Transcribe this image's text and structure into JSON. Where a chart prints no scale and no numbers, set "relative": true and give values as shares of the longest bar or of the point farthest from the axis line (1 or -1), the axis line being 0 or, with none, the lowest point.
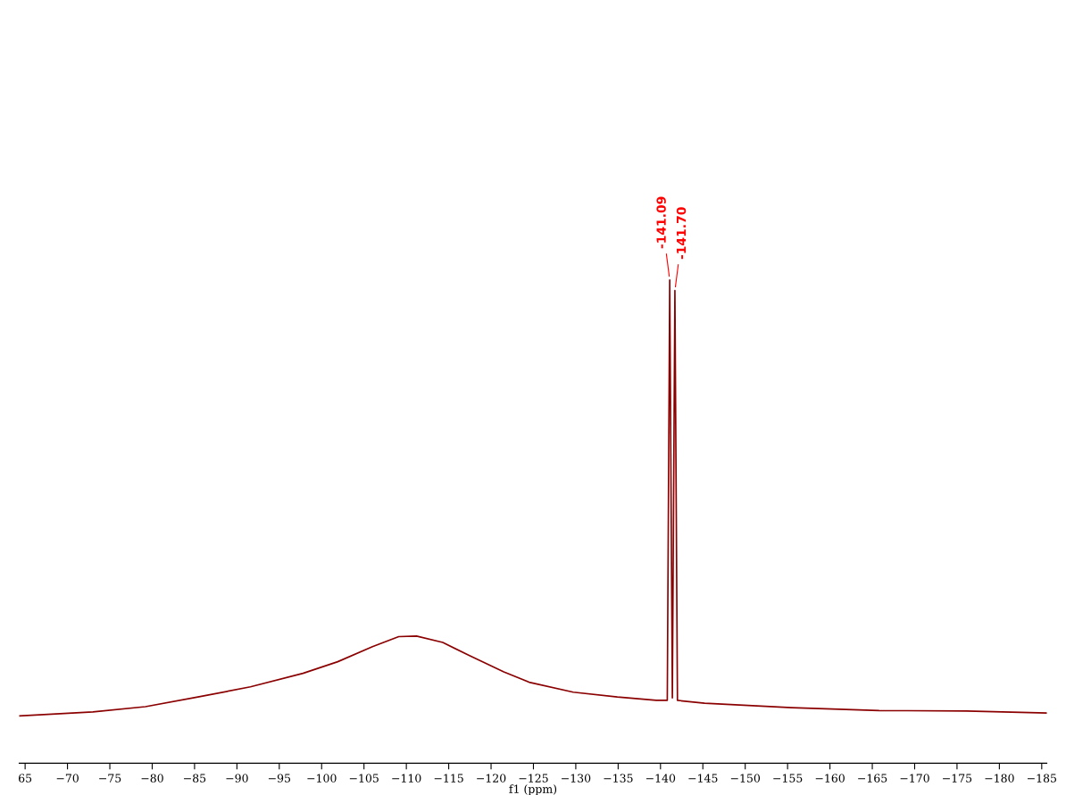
{
  "chart_data": {
    "type": "line",
    "relative": true,
    "xlabel": "f1 (ppm)",
    "x": [
      -64.3,
      -73,
      -79.2,
      -85.4,
      -91.6,
      -97.8,
      -101.9,
      -106,
      -109.1,
      -111.2,
      -114.3,
      -117.4,
      -121.5,
      -124.6,
      -129.7,
      -134.9,
      -139.5,
      -140.8,
      -141.09,
      -141.4,
      -141.7,
      -142.0,
      -145.2,
      -155.5,
      -165.8,
      -176.1,
      -185.6
    ],
    "series": [
      {
        "color": "#8b0000",
        "values": [
          0.098,
          0.106,
          0.117,
          0.137,
          0.158,
          0.186,
          0.21,
          0.241,
          0.262,
          0.263,
          0.25,
          0.223,
          0.189,
          0.167,
          0.147,
          0.137,
          0.13,
          0.13,
          1.0,
          0.135,
          0.978,
          0.13,
          0.124,
          0.115,
          0.109,
          0.108,
          0.104
        ]
      }
    ],
    "xlim": [
      -64.3,
      -185.6
    ],
    "xticks": [
      {
        "value": -65,
        "label": "65"
      },
      {
        "value": -70,
        "label": "−70"
      },
      {
        "value": -75,
        "label": "−75"
      },
      {
        "value": -80,
        "label": "−80"
      },
      {
        "value": -85,
        "label": "−85"
      },
      {
        "value": -90,
        "label": "−90"
      },
      {
        "value": -95,
        "label": "−95"
      },
      {
        "value": -100,
        "label": "−100"
      },
      {
        "value": -105,
        "label": "−105"
      },
      {
        "value": -110,
        "label": "−110"
      },
      {
        "value": -115,
        "label": "−115"
      },
      {
        "value": -120,
        "label": "−120"
      },
      {
        "value": -125,
        "label": "−125"
      },
      {
        "value": -130,
        "label": "−130"
      },
      {
        "value": -135,
        "label": "−135"
      },
      {
        "value": -140,
        "label": "−140"
      },
      {
        "value": -145,
        "label": "−145"
      },
      {
        "value": -150,
        "label": "−150"
      },
      {
        "value": -155,
        "label": "−155"
      },
      {
        "value": -160,
        "label": "−160"
      },
      {
        "value": -165,
        "label": "−165"
      },
      {
        "value": -170,
        "label": "−170"
      },
      {
        "value": -175,
        "label": "−175"
      },
      {
        "value": -180,
        "label": "−180"
      },
      {
        "value": -185,
        "label": "−185"
      }
    ],
    "annotations": [
      {
        "text": "-141.09",
        "x": -141.09,
        "y": 1.0
      },
      {
        "text": "-141.70",
        "x": -141.7,
        "y": 0.978
      }
    ],
    "grid": false,
    "legend": false,
    "marker": "none",
    "line_style": "solid"
  }
}
